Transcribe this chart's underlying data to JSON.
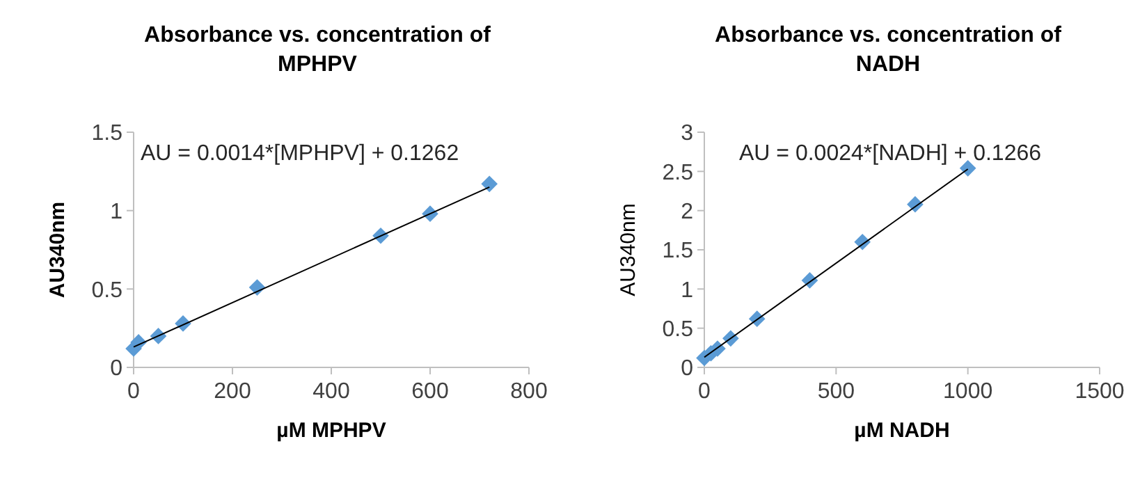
{
  "chart_data": [
    {
      "type": "scatter",
      "title": "Absorbance vs. concentration of MPHPV",
      "xlabel": "µM MPHPV",
      "ylabel": "AU340nm",
      "xlim": [
        0,
        800
      ],
      "xticks": [
        0,
        200,
        400,
        600,
        800
      ],
      "ylim": [
        0,
        1.5
      ],
      "yticks": [
        0,
        0.5,
        1,
        1.5
      ],
      "grid": false,
      "annotations": [
        "AU = 0.0014*[MPHPV] + 0.1262"
      ],
      "series": [
        {
          "color": "#5b9bd5",
          "marker": "diamond",
          "x": [
            0,
            10,
            50,
            100,
            250,
            500,
            600,
            720
          ],
          "values": [
            0.12,
            0.16,
            0.2,
            0.28,
            0.51,
            0.84,
            0.98,
            1.17
          ]
        },
        {
          "type": "line",
          "color": "#000000",
          "marker": "none",
          "x": [
            0,
            720
          ],
          "values": [
            0.13,
            1.15
          ]
        }
      ]
    },
    {
      "type": "scatter",
      "title": "Absorbance vs. concentration of NADH",
      "xlabel": "µM NADH",
      "ylabel": "AU340nm",
      "xlim": [
        0,
        1500
      ],
      "xticks": [
        0,
        500,
        1000,
        1500
      ],
      "ylim": [
        0,
        3
      ],
      "yticks": [
        0,
        0.5,
        1,
        1.5,
        2,
        2.5,
        3
      ],
      "grid": false,
      "annotations": [
        "AU = 0.0024*[NADH] + 0.1266"
      ],
      "series": [
        {
          "color": "#5b9bd5",
          "marker": "diamond",
          "x": [
            0,
            25,
            50,
            100,
            200,
            400,
            600,
            800,
            1000
          ],
          "values": [
            0.12,
            0.18,
            0.24,
            0.37,
            0.62,
            1.11,
            1.6,
            2.08,
            2.54
          ]
        },
        {
          "type": "line",
          "color": "#000000",
          "marker": "none",
          "x": [
            0,
            1000
          ],
          "values": [
            0.13,
            2.53
          ]
        }
      ]
    }
  ]
}
